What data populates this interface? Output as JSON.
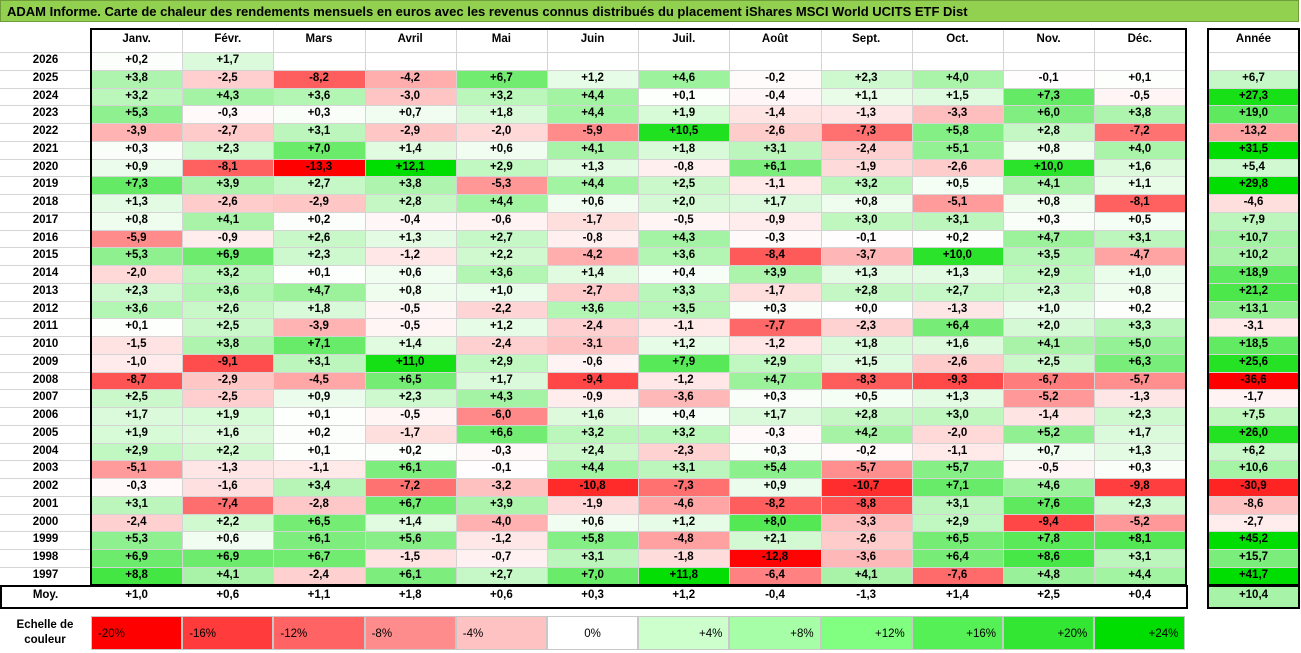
{
  "title": "ADAM Informe. Carte de chaleur des rendements mensuels en euros avec les revenus connus distribués du placement iShares MSCI World UCITS ETF Dist",
  "chart_data": {
    "type": "heatmap",
    "columns": [
      "Janv.",
      "Févr.",
      "Mars",
      "Avril",
      "Mai",
      "Juin",
      "Juil.",
      "Août",
      "Sept.",
      "Oct.",
      "Nov.",
      "Déc."
    ],
    "annual_header": "Année",
    "rows": [
      {
        "year": "2026",
        "values": [
          "+0,2",
          "+1,7",
          "",
          "",
          "",
          "",
          "",
          "",
          "",
          "",
          "",
          ""
        ],
        "annual": ""
      },
      {
        "year": "2025",
        "values": [
          "+3,8",
          "-2,5",
          "-8,2",
          "-4,2",
          "+6,7",
          "+1,2",
          "+4,6",
          "-0,2",
          "+2,3",
          "+4,0",
          "-0,1",
          "+0,1"
        ],
        "annual": "+6,7"
      },
      {
        "year": "2024",
        "values": [
          "+3,2",
          "+4,3",
          "+3,6",
          "-3,0",
          "+3,2",
          "+4,4",
          "+0,1",
          "-0,4",
          "+1,1",
          "+1,5",
          "+7,3",
          "-0,5"
        ],
        "annual": "+27,3"
      },
      {
        "year": "2023",
        "values": [
          "+5,3",
          "-0,3",
          "+0,3",
          "+0,7",
          "+1,8",
          "+4,4",
          "+1,9",
          "-1,4",
          "-1,3",
          "-3,3",
          "+6,0",
          "+3,8"
        ],
        "annual": "+19,0"
      },
      {
        "year": "2022",
        "values": [
          "-3,9",
          "-2,7",
          "+3,1",
          "-2,9",
          "-2,0",
          "-5,9",
          "+10,5",
          "-2,6",
          "-7,3",
          "+5,8",
          "+2,8",
          "-7,2"
        ],
        "annual": "-13,2"
      },
      {
        "year": "2021",
        "values": [
          "+0,3",
          "+2,3",
          "+7,0",
          "+1,4",
          "+0,6",
          "+4,1",
          "+1,8",
          "+3,1",
          "-2,4",
          "+5,1",
          "+0,8",
          "+4,0"
        ],
        "annual": "+31,5"
      },
      {
        "year": "2020",
        "values": [
          "+0,9",
          "-8,1",
          "-13,3",
          "+12,1",
          "+2,9",
          "+1,3",
          "-0,8",
          "+6,1",
          "-1,9",
          "-2,6",
          "+10,0",
          "+1,6"
        ],
        "annual": "+5,4"
      },
      {
        "year": "2019",
        "values": [
          "+7,3",
          "+3,9",
          "+2,7",
          "+3,8",
          "-5,3",
          "+4,4",
          "+2,5",
          "-1,1",
          "+3,2",
          "+0,5",
          "+4,1",
          "+1,1"
        ],
        "annual": "+29,8"
      },
      {
        "year": "2018",
        "values": [
          "+1,3",
          "-2,6",
          "-2,9",
          "+2,8",
          "+4,4",
          "+0,6",
          "+2,0",
          "+1,7",
          "+0,8",
          "-5,1",
          "+0,8",
          "-8,1"
        ],
        "annual": "-4,6"
      },
      {
        "year": "2017",
        "values": [
          "+0,8",
          "+4,1",
          "+0,2",
          "-0,4",
          "-0,6",
          "-1,7",
          "-0,5",
          "-0,9",
          "+3,0",
          "+3,1",
          "+0,3",
          "+0,5"
        ],
        "annual": "+7,9"
      },
      {
        "year": "2016",
        "values": [
          "-5,9",
          "-0,9",
          "+2,6",
          "+1,3",
          "+2,7",
          "-0,8",
          "+4,3",
          "-0,3",
          "-0,1",
          "+0,2",
          "+4,7",
          "+3,1"
        ],
        "annual": "+10,7"
      },
      {
        "year": "2015",
        "values": [
          "+5,3",
          "+6,9",
          "+2,3",
          "-1,2",
          "+2,2",
          "-4,2",
          "+3,6",
          "-8,4",
          "-3,7",
          "+10,0",
          "+3,5",
          "-4,7"
        ],
        "annual": "+10,2"
      },
      {
        "year": "2014",
        "values": [
          "-2,0",
          "+3,2",
          "+0,1",
          "+0,6",
          "+3,6",
          "+1,4",
          "+0,4",
          "+3,9",
          "+1,3",
          "+1,3",
          "+2,9",
          "+1,0"
        ],
        "annual": "+18,9"
      },
      {
        "year": "2013",
        "values": [
          "+2,3",
          "+3,6",
          "+4,7",
          "+0,8",
          "+1,0",
          "-2,7",
          "+3,3",
          "-1,7",
          "+2,8",
          "+2,7",
          "+2,3",
          "+0,8"
        ],
        "annual": "+21,2"
      },
      {
        "year": "2012",
        "values": [
          "+3,6",
          "+2,6",
          "+1,8",
          "-0,5",
          "-2,2",
          "+3,6",
          "+3,5",
          "+0,3",
          "+0,0",
          "-1,3",
          "+1,0",
          "+0,2"
        ],
        "annual": "+13,1"
      },
      {
        "year": "2011",
        "values": [
          "+0,1",
          "+2,5",
          "-3,9",
          "-0,5",
          "+1,2",
          "-2,4",
          "-1,1",
          "-7,7",
          "-2,3",
          "+6,4",
          "+2,0",
          "+3,3"
        ],
        "annual": "-3,1"
      },
      {
        "year": "2010",
        "values": [
          "-1,5",
          "+3,8",
          "+7,1",
          "+1,4",
          "-2,4",
          "-3,1",
          "+1,2",
          "-1,2",
          "+1,8",
          "+1,6",
          "+4,1",
          "+5,0"
        ],
        "annual": "+18,5"
      },
      {
        "year": "2009",
        "values": [
          "-1,0",
          "-9,1",
          "+3,1",
          "+11,0",
          "+2,9",
          "-0,6",
          "+7,9",
          "+2,9",
          "+1,5",
          "-2,6",
          "+2,5",
          "+6,3"
        ],
        "annual": "+25,6"
      },
      {
        "year": "2008",
        "values": [
          "-8,7",
          "-2,9",
          "-4,5",
          "+6,5",
          "+1,7",
          "-9,4",
          "-1,2",
          "+4,7",
          "-8,3",
          "-9,3",
          "-6,7",
          "-5,7"
        ],
        "annual": "-36,6"
      },
      {
        "year": "2007",
        "values": [
          "+2,5",
          "-2,5",
          "+0,9",
          "+2,3",
          "+4,3",
          "-0,9",
          "-3,6",
          "+0,3",
          "+0,5",
          "+1,3",
          "-5,2",
          "-1,3"
        ],
        "annual": "-1,7"
      },
      {
        "year": "2006",
        "values": [
          "+1,7",
          "+1,9",
          "+0,1",
          "-0,5",
          "-6,0",
          "+1,6",
          "+0,4",
          "+1,7",
          "+2,8",
          "+3,0",
          "-1,4",
          "+2,3"
        ],
        "annual": "+7,5"
      },
      {
        "year": "2005",
        "values": [
          "+1,9",
          "+1,6",
          "+0,2",
          "-1,7",
          "+6,6",
          "+3,2",
          "+3,2",
          "-0,3",
          "+4,2",
          "-2,0",
          "+5,2",
          "+1,7"
        ],
        "annual": "+26,0"
      },
      {
        "year": "2004",
        "values": [
          "+2,9",
          "+2,2",
          "+0,1",
          "+0,2",
          "-0,3",
          "+2,4",
          "-2,3",
          "+0,3",
          "-0,2",
          "-1,1",
          "+0,7",
          "+1,3"
        ],
        "annual": "+6,2"
      },
      {
        "year": "2003",
        "values": [
          "-5,1",
          "-1,3",
          "-1,1",
          "+6,1",
          "-0,1",
          "+4,4",
          "+3,1",
          "+5,4",
          "-5,7",
          "+5,7",
          "-0,5",
          "+0,3"
        ],
        "annual": "+10,6"
      },
      {
        "year": "2002",
        "values": [
          "-0,3",
          "-1,6",
          "+3,4",
          "-7,2",
          "-3,2",
          "-10,8",
          "-7,3",
          "+0,9",
          "-10,7",
          "+7,1",
          "+4,6",
          "-9,8"
        ],
        "annual": "-30,9"
      },
      {
        "year": "2001",
        "values": [
          "+3,1",
          "-7,4",
          "-2,8",
          "+6,7",
          "+3,9",
          "-1,9",
          "-4,6",
          "-8,2",
          "-8,8",
          "+3,1",
          "+7,6",
          "+2,3"
        ],
        "annual": "-8,6"
      },
      {
        "year": "2000",
        "values": [
          "-2,4",
          "+2,2",
          "+6,5",
          "+1,4",
          "-4,0",
          "+0,6",
          "+1,2",
          "+8,0",
          "-3,3",
          "+2,9",
          "-9,4",
          "-5,2"
        ],
        "annual": "-2,7"
      },
      {
        "year": "1999",
        "values": [
          "+5,3",
          "+0,6",
          "+6,1",
          "+5,6",
          "-1,2",
          "+5,8",
          "-4,8",
          "+2,1",
          "-2,6",
          "+6,5",
          "+7,8",
          "+8,1"
        ],
        "annual": "+45,2"
      },
      {
        "year": "1998",
        "values": [
          "+6,9",
          "+6,9",
          "+6,7",
          "-1,5",
          "-0,7",
          "+3,1",
          "-1,8",
          "-12,8",
          "-3,6",
          "+6,4",
          "+8,6",
          "+3,1"
        ],
        "annual": "+15,7"
      },
      {
        "year": "1997",
        "values": [
          "+8,8",
          "+4,1",
          "-2,4",
          "+6,1",
          "+2,7",
          "+7,0",
          "+11,8",
          "-6,4",
          "+4,1",
          "-7,6",
          "+4,8",
          "+4,4"
        ],
        "annual": "+41,7"
      }
    ],
    "average": {
      "label": "Moy.",
      "values": [
        "+1,0",
        "+0,6",
        "+1,1",
        "+1,8",
        "+0,6",
        "+0,3",
        "+1,2",
        "-0,4",
        "-1,3",
        "+1,4",
        "+2,5",
        "+0,4"
      ],
      "annual": "+10,4"
    },
    "color_scale": {
      "label": "Echelle de couleur",
      "stops": [
        {
          "label": "-20%",
          "value": -20,
          "color": "#ff0000"
        },
        {
          "label": "-16%",
          "value": -16,
          "color": "#ff3b3b"
        },
        {
          "label": "-12%",
          "value": -12,
          "color": "#ff6363"
        },
        {
          "label": "-8%",
          "value": -8,
          "color": "#ff8c8c"
        },
        {
          "label": "-4%",
          "value": -4,
          "color": "#ffc2c2"
        },
        {
          "label": "0%",
          "value": 0,
          "color": "#ffffff"
        },
        {
          "label": "+4%",
          "value": 4,
          "color": "#ccffcc"
        },
        {
          "label": "+8%",
          "value": 8,
          "color": "#a6ffa6"
        },
        {
          "label": "+12%",
          "value": 12,
          "color": "#80ff80"
        },
        {
          "label": "+16%",
          "value": 16,
          "color": "#55f055"
        },
        {
          "label": "+20%",
          "value": 20,
          "color": "#33e633"
        },
        {
          "label": "+24%",
          "value": 24,
          "color": "#00dd00"
        }
      ]
    }
  }
}
